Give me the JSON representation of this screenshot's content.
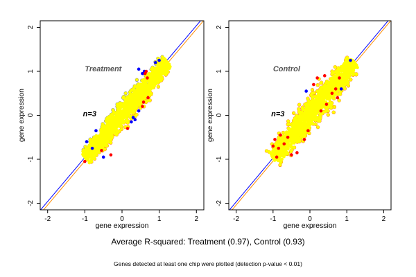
{
  "chart_data": [
    {
      "type": "scatter",
      "title": "Treatment",
      "annotation": "n=3",
      "xlabel": "gene expression",
      "ylabel": "gene expression",
      "xlim": [
        -2.2,
        2.2
      ],
      "ylim": [
        -2.15,
        2.15
      ],
      "xticks": [
        "-2",
        "-1",
        "0",
        "1",
        "2"
      ],
      "yticks": [
        "-2",
        "-1",
        "0",
        "1",
        "2"
      ],
      "grid": false,
      "colors": {
        "main": "#ffff00",
        "outlier_high": "#0000ff",
        "outlier_low": "#ff0000",
        "line_a": "#0000ff",
        "line_b": "#ff8c00"
      },
      "cloud": {
        "center": [
          0.05,
          0.1
        ],
        "major_extent": [
          -1.0,
          1.2
        ],
        "minor_sd": 0.12
      },
      "reference_lines": [
        {
          "color": "#0000ff",
          "intercept": 0.04,
          "slope": 1
        },
        {
          "color": "#ff8c00",
          "intercept": -0.04,
          "slope": 1
        }
      ],
      "series": [
        {
          "color": "#0000ff",
          "points": [
            [
              -0.95,
              -0.6
            ],
            [
              -0.7,
              -0.35
            ],
            [
              0.55,
              0.95
            ],
            [
              0.6,
              1.0
            ],
            [
              0.45,
              1.05
            ],
            [
              0.3,
              -0.05
            ],
            [
              0.35,
              -0.1
            ],
            [
              0.25,
              -0.15
            ],
            [
              0.45,
              0.1
            ],
            [
              -0.5,
              -0.95
            ],
            [
              -0.8,
              -0.75
            ],
            [
              0.9,
              1.2
            ],
            [
              1.0,
              1.25
            ]
          ]
        },
        {
          "color": "#ff0000",
          "points": [
            [
              0.62,
              0.95
            ],
            [
              0.68,
              0.85
            ],
            [
              0.58,
              0.3
            ],
            [
              0.7,
              0.4
            ],
            [
              0.55,
              0.2
            ],
            [
              -0.55,
              -0.8
            ],
            [
              -0.3,
              -0.9
            ],
            [
              -1.0,
              -1.05
            ],
            [
              0.65,
              1.0
            ],
            [
              0.15,
              -0.3
            ]
          ]
        }
      ]
    },
    {
      "type": "scatter",
      "title": "Control",
      "annotation": "n=3",
      "xlabel": "gene expression",
      "ylabel": "gene expression",
      "xlim": [
        -2.2,
        2.2
      ],
      "ylim": [
        -2.15,
        2.15
      ],
      "xticks": [
        "-2",
        "-1",
        "0",
        "1",
        "2"
      ],
      "yticks": [
        "-2",
        "-1",
        "0",
        "1",
        "2"
      ],
      "grid": false,
      "colors": {
        "main": "#ffff00",
        "outlier_high": "#0000ff",
        "outlier_low": "#ff0000",
        "line_a": "#0000ff",
        "line_b": "#ff8c00"
      },
      "cloud": {
        "center": [
          0.0,
          0.05
        ],
        "major_extent": [
          -1.0,
          1.2
        ],
        "minor_sd": 0.14
      },
      "reference_lines": [
        {
          "color": "#0000ff",
          "intercept": 0.03,
          "slope": 1
        },
        {
          "color": "#ff8c00",
          "intercept": -0.04,
          "slope": 1
        }
      ],
      "series": [
        {
          "color": "#0000ff",
          "points": [
            [
              -0.1,
              0.55
            ],
            [
              1.1,
              1.25
            ],
            [
              0.85,
              0.6
            ]
          ]
        },
        {
          "color": "#ff0000",
          "points": [
            [
              -0.85,
              -0.75
            ],
            [
              -0.9,
              -0.95
            ],
            [
              -0.7,
              -0.65
            ],
            [
              -0.5,
              -0.9
            ],
            [
              -0.35,
              -0.85
            ],
            [
              -0.8,
              -0.45
            ],
            [
              -0.95,
              -0.55
            ],
            [
              0.4,
              0.9
            ],
            [
              0.2,
              0.85
            ],
            [
              0.6,
              0.5
            ],
            [
              0.7,
              0.6
            ],
            [
              0.75,
              0.4
            ],
            [
              0.45,
              0.25
            ],
            [
              -0.05,
              -0.35
            ],
            [
              -0.15,
              -0.55
            ],
            [
              0.1,
              0.7
            ],
            [
              0.8,
              0.85
            ],
            [
              -1.0,
              -0.7
            ],
            [
              -0.6,
              -0.5
            ],
            [
              0.3,
              0.1
            ]
          ]
        }
      ]
    }
  ],
  "caption": {
    "main": "Average R-squared: Treatment (0.97), Control (0.93)",
    "sub": "Genes detected at least one chip were plotted (detection p-value < 0.01)"
  }
}
